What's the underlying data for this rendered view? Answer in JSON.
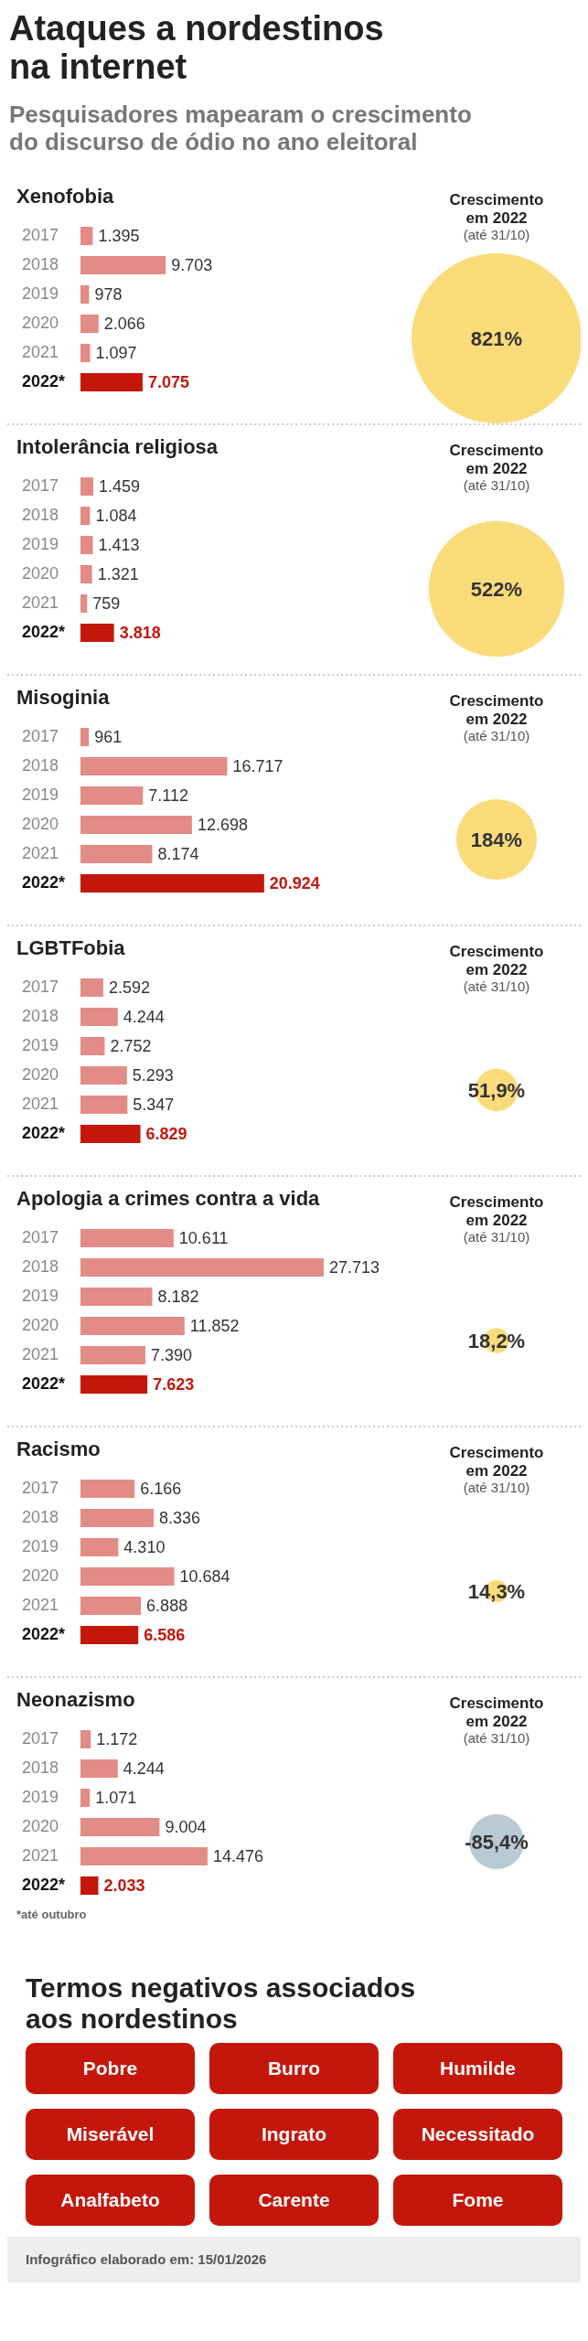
{
  "chart_data": [
    {
      "type": "other",
      "title": "Ataques a nordestinos na internet",
      "subtitle": "Pesquisadores mapearam o crescimento do discurso de ódio no ano eleitoral"
    },
    {
      "type": "bar",
      "orientation": "horizontal",
      "title": "Xenofobia",
      "categories": [
        "2017",
        "2018",
        "2019",
        "2020",
        "2021",
        "2022*"
      ],
      "values": [
        1395,
        9703,
        978,
        2066,
        1097,
        7075
      ],
      "value_labels": [
        "1.395",
        "9.703",
        "978",
        "2.066",
        "1.097",
        "7.075"
      ],
      "colors": [
        "#e38b87",
        "#e38b87",
        "#e38b87",
        "#e38b87",
        "#e38b87",
        "#c4170c"
      ]
    },
    {
      "type": "other",
      "title": "Crescimento em 2022",
      "subtitle": "(até 31/10)",
      "values": [
        821
      ],
      "value_labels": [
        "821%"
      ],
      "colors": [
        "#fbdc7b"
      ]
    },
    {
      "type": "bar",
      "orientation": "horizontal",
      "title": "Intolerância religiosa",
      "categories": [
        "2017",
        "2018",
        "2019",
        "2020",
        "2021",
        "2022*"
      ],
      "values": [
        1459,
        1084,
        1413,
        1321,
        759,
        3818
      ],
      "value_labels": [
        "1.459",
        "1.084",
        "1.413",
        "1.321",
        "759",
        "3.818"
      ],
      "colors": [
        "#e38b87",
        "#e38b87",
        "#e38b87",
        "#e38b87",
        "#e38b87",
        "#c4170c"
      ]
    },
    {
      "type": "other",
      "title": "Crescimento em 2022",
      "subtitle": "(até 31/10)",
      "values": [
        522
      ],
      "value_labels": [
        "522%"
      ],
      "colors": [
        "#fbdc7b"
      ]
    },
    {
      "type": "bar",
      "orientation": "horizontal",
      "title": "Misoginia",
      "categories": [
        "2017",
        "2018",
        "2019",
        "2020",
        "2021",
        "2022*"
      ],
      "values": [
        961,
        16717,
        7112,
        12698,
        8174,
        20924
      ],
      "value_labels": [
        "961",
        "16.717",
        "7.112",
        "12.698",
        "8.174",
        "20.924"
      ],
      "colors": [
        "#e38b87",
        "#e38b87",
        "#e38b87",
        "#e38b87",
        "#e38b87",
        "#c4170c"
      ]
    },
    {
      "type": "other",
      "title": "Crescimento em 2022",
      "subtitle": "(até 31/10)",
      "values": [
        184
      ],
      "value_labels": [
        "184%"
      ],
      "colors": [
        "#fbdc7b"
      ]
    },
    {
      "type": "bar",
      "orientation": "horizontal",
      "title": "LGBTFobia",
      "categories": [
        "2017",
        "2018",
        "2019",
        "2020",
        "2021",
        "2022*"
      ],
      "values": [
        2592,
        4244,
        2752,
        5293,
        5347,
        6829
      ],
      "value_labels": [
        "2.592",
        "4.244",
        "2.752",
        "5.293",
        "5.347",
        "6.829"
      ],
      "colors": [
        "#e38b87",
        "#e38b87",
        "#e38b87",
        "#e38b87",
        "#e38b87",
        "#c4170c"
      ]
    },
    {
      "type": "other",
      "title": "Crescimento em 2022",
      "subtitle": "(até 31/10)",
      "values": [
        51.9
      ],
      "value_labels": [
        "51,9%"
      ],
      "colors": [
        "#fbdc7b"
      ]
    },
    {
      "type": "bar",
      "orientation": "horizontal",
      "title": "Apologia a crimes contra a vida",
      "categories": [
        "2017",
        "2018",
        "2019",
        "2020",
        "2021",
        "2022*"
      ],
      "values": [
        10611,
        27713,
        8182,
        11852,
        7390,
        7623
      ],
      "value_labels": [
        "10.611",
        "27.713",
        "8.182",
        "11.852",
        "7.390",
        "7.623"
      ],
      "colors": [
        "#e38b87",
        "#e38b87",
        "#e38b87",
        "#e38b87",
        "#e38b87",
        "#c4170c"
      ]
    },
    {
      "type": "other",
      "title": "Crescimento em 2022",
      "subtitle": "(até 31/10)",
      "values": [
        18.2
      ],
      "value_labels": [
        "18,2%"
      ],
      "colors": [
        "#fbdc7b"
      ]
    },
    {
      "type": "bar",
      "orientation": "horizontal",
      "title": "Racismo",
      "categories": [
        "2017",
        "2018",
        "2019",
        "2020",
        "2021",
        "2022*"
      ],
      "values": [
        6166,
        8336,
        4310,
        10684,
        6888,
        6586
      ],
      "value_labels": [
        "6.166",
        "8.336",
        "4.310",
        "10.684",
        "6.888",
        "6.586"
      ],
      "colors": [
        "#e38b87",
        "#e38b87",
        "#e38b87",
        "#e38b87",
        "#e38b87",
        "#c4170c"
      ]
    },
    {
      "type": "other",
      "title": "Crescimento em 2022",
      "subtitle": "(até 31/10)",
      "values": [
        14.3
      ],
      "value_labels": [
        "14,3%"
      ],
      "colors": [
        "#fbdc7b"
      ]
    },
    {
      "type": "bar",
      "orientation": "horizontal",
      "title": "Neonazismo",
      "categories": [
        "2017",
        "2018",
        "2019",
        "2020",
        "2021",
        "2022*"
      ],
      "values": [
        1172,
        4244,
        1071,
        9004,
        14476,
        2033
      ],
      "value_labels": [
        "1.172",
        "4.244",
        "1.071",
        "9.004",
        "14.476",
        "2.033"
      ],
      "colors": [
        "#e38b87",
        "#e38b87",
        "#e38b87",
        "#e38b87",
        "#e38b87",
        "#c4170c"
      ],
      "annotations": [
        "*até outubro"
      ]
    },
    {
      "type": "other",
      "title": "Crescimento em 2022",
      "subtitle": "(até 31/10)",
      "values": [
        -85.4
      ],
      "value_labels": [
        "-85,4%"
      ],
      "colors": [
        "#b9cad4"
      ]
    },
    {
      "type": "other",
      "title": "Termos negativos associados aos nordestinos",
      "annotations": [
        "Pobre",
        "Burro",
        "Humilde",
        "Miserável",
        "Ingrato",
        "Necessitado",
        "Analfabeto",
        "Carente",
        "Fome"
      ]
    },
    {
      "type": "other",
      "annotations": [
        "Infográfico elaborado em: 15/01/2026"
      ]
    }
  ]
}
